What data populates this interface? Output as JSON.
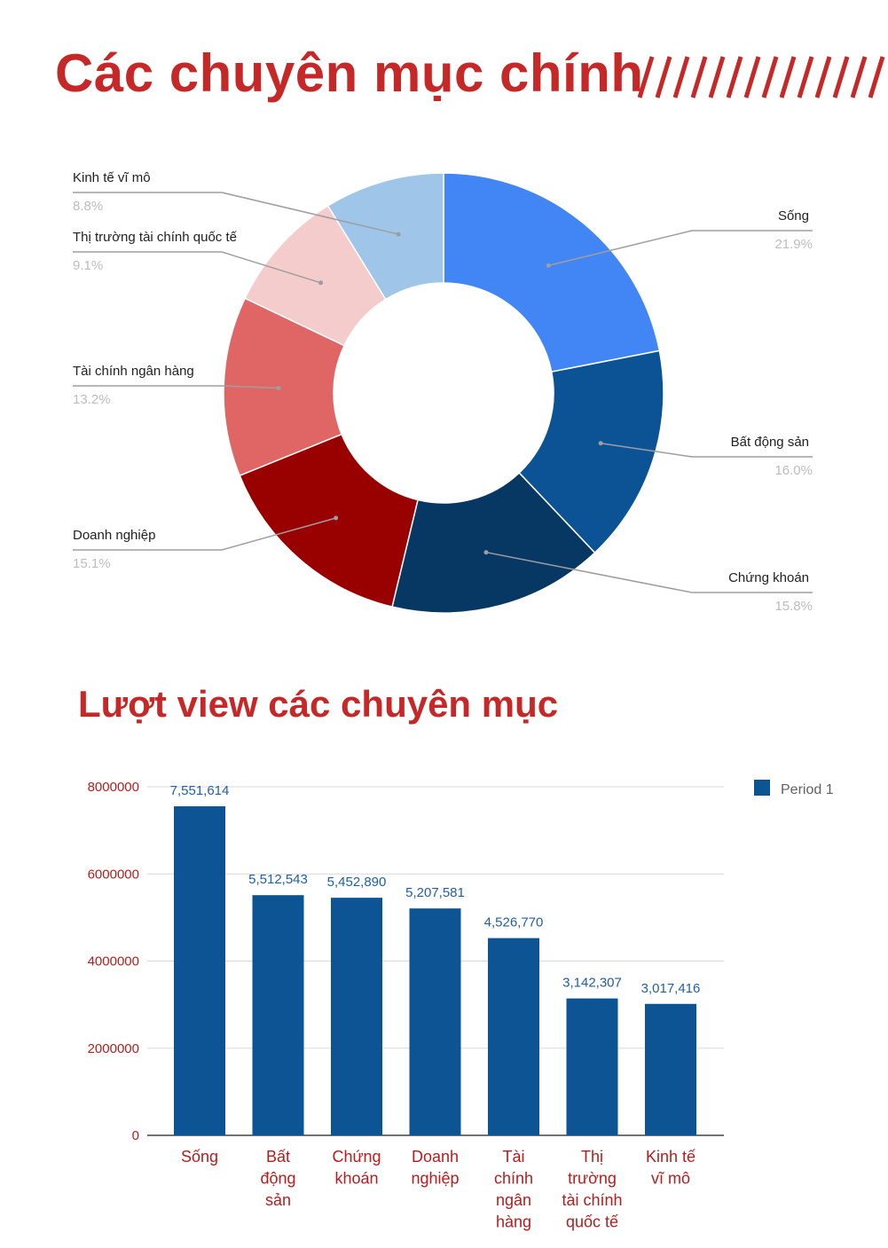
{
  "header": {
    "title": "Các chuyên mục chính",
    "decoration": "//////////////"
  },
  "section2": {
    "title": "Lượt view các chuyên mục"
  },
  "colors": {
    "title_red": "#c62828",
    "bar_blue": "#0d5494",
    "label_red": "#b71c1c",
    "value_blue": "#1f5fa8"
  },
  "chart_data": [
    {
      "type": "pie",
      "donut": true,
      "categories": [
        "Sống",
        "Bất động sản",
        "Chứng khoán",
        "Doanh nghiệp",
        "Tài chính ngân hàng",
        "Thị trường tài chính quốc tế",
        "Kinh tế vĩ mô"
      ],
      "values": [
        21.9,
        16.0,
        15.8,
        15.1,
        13.2,
        9.1,
        8.8
      ],
      "value_labels": [
        "21.9%",
        "16.0%",
        "15.8%",
        "15.1%",
        "13.2%",
        "9.1%",
        "8.8%"
      ],
      "colors": [
        "#4285f4",
        "#0b5394",
        "#073763",
        "#990000",
        "#e06666",
        "#f4cccc",
        "#9fc5e8"
      ]
    },
    {
      "type": "bar",
      "categories": [
        "Sống",
        "Bất động sản",
        "Chứng khoán",
        "Doanh nghiệp",
        "Tài chính ngân hàng",
        "Thị trường tài chính quốc tế",
        "Kinh tế vĩ mô"
      ],
      "category_lines": [
        [
          "Sống"
        ],
        [
          "Bất",
          "động",
          "sản"
        ],
        [
          "Chứng",
          "khoán"
        ],
        [
          "Doanh",
          "nghiệp"
        ],
        [
          "Tài",
          "chính",
          "ngân",
          "hàng"
        ],
        [
          "Thị",
          "trường",
          "tài chính",
          "quốc tế"
        ],
        [
          "Kinh tế",
          "vĩ mô"
        ]
      ],
      "series": [
        {
          "name": "Period 1",
          "values": [
            7551614,
            5512543,
            5452890,
            5207581,
            4526770,
            3142307,
            3017416
          ],
          "value_labels": [
            "7,551,614",
            "5,512,543",
            "5,452,890",
            "5,207,581",
            "4,526,770",
            "3,142,307",
            "3,017,416"
          ]
        }
      ],
      "ylim": [
        0,
        8000000
      ],
      "yticks": [
        "0",
        "2000000",
        "4000000",
        "6000000",
        "8000000"
      ],
      "grid": true,
      "legend": "top-right"
    }
  ]
}
